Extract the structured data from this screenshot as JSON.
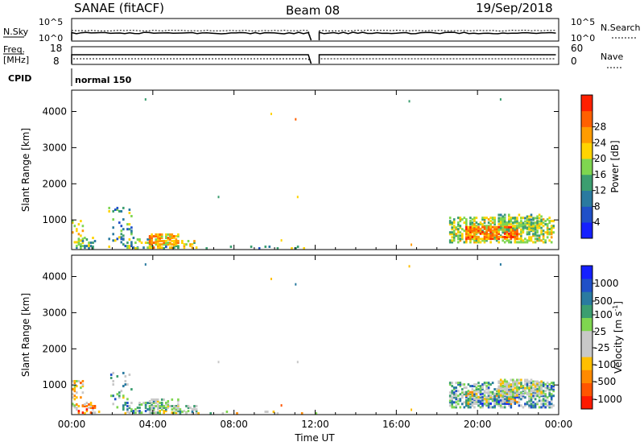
{
  "header": {
    "radar": "SANAE (fitACF)",
    "beam": "Beam 08",
    "date": "19/Sep/2018"
  },
  "status_panels": {
    "nsky_label": "N.Sky",
    "nsky_ticks": [
      "10^5",
      "10^0"
    ],
    "nsearch_label": "N.Search",
    "nsearch_ticks": [
      "10^5",
      "10^0"
    ],
    "freq_label": "Freq.",
    "freq_unit": "[MHz]",
    "freq_ticks": [
      "18",
      "8"
    ],
    "nave_label": "Nave",
    "nave_ticks": [
      "60",
      "0"
    ],
    "cpid_label": "CPID",
    "cpid_value": "normal 150",
    "gap_hours": [
      11.8,
      12.2
    ]
  },
  "colors": {
    "power_scale": [
      "#1520ff",
      "#2050c8",
      "#2a7aa0",
      "#3c9e70",
      "#7fd650",
      "#ffd400",
      "#ff9c00",
      "#ff6000",
      "#ff2000"
    ],
    "velocity_scale": [
      "#ff1a00",
      "#ff5500",
      "#ff8a00",
      "#ffbf00",
      "#c8c8c8",
      "#c8c8c8",
      "#7fd650",
      "#3c9e70",
      "#2a7aa0",
      "#2050c8",
      "#1520ff"
    ]
  },
  "chart_data": [
    {
      "type": "heatmap",
      "panel": "power",
      "ylabel": "Slant Range [km]",
      "xlabel": "",
      "x_ticks": [
        "00:00",
        "04:00",
        "08:00",
        "12:00",
        "16:00",
        "20:00",
        "00:00"
      ],
      "xlim_hours": [
        0,
        24
      ],
      "y_ticks": [
        1000,
        2000,
        3000,
        4000
      ],
      "ylim_km": [
        180,
        4590
      ],
      "colorbar": {
        "label": "Power [dB]",
        "ticks": [
          "4",
          "8",
          "12",
          "16",
          "20",
          "24",
          "28"
        ],
        "range": [
          0,
          32
        ]
      },
      "regions": [
        {
          "t0": 0.0,
          "t1": 0.6,
          "r0": 350,
          "r1": 1100,
          "density": 0.25,
          "v0": 14,
          "v1": 24
        },
        {
          "t0": 0.2,
          "t1": 1.2,
          "r0": 200,
          "r1": 500,
          "density": 0.35,
          "v0": 8,
          "v1": 22
        },
        {
          "t0": 1.8,
          "t1": 3.0,
          "r0": 350,
          "r1": 1300,
          "density": 0.12,
          "v0": 4,
          "v1": 20
        },
        {
          "t0": 2.5,
          "t1": 4.0,
          "r0": 200,
          "r1": 500,
          "density": 0.3,
          "v0": 4,
          "v1": 20
        },
        {
          "t0": 3.8,
          "t1": 5.2,
          "r0": 200,
          "r1": 580,
          "density": 0.6,
          "v0": 16,
          "v1": 28
        },
        {
          "t0": 5.0,
          "t1": 6.1,
          "r0": 200,
          "r1": 420,
          "density": 0.35,
          "v0": 12,
          "v1": 24
        },
        {
          "t0": 0.3,
          "t1": 12.0,
          "r0": 180,
          "r1": 260,
          "density": 0.08,
          "v0": 4,
          "v1": 20
        },
        {
          "t0": 18.6,
          "t1": 23.8,
          "r0": 350,
          "r1": 1050,
          "density": 0.5,
          "v0": 12,
          "v1": 22
        },
        {
          "t0": 19.4,
          "t1": 22.0,
          "r0": 450,
          "r1": 800,
          "density": 0.75,
          "v0": 20,
          "v1": 30
        },
        {
          "t0": 21.0,
          "t1": 23.2,
          "r0": 700,
          "r1": 1150,
          "density": 0.45,
          "v0": 10,
          "v1": 20
        }
      ],
      "points": [
        {
          "t": 3.6,
          "r": 4300,
          "v": 12
        },
        {
          "t": 9.8,
          "r": 3900,
          "v": 20
        },
        {
          "t": 11.0,
          "r": 3750,
          "v": 26
        },
        {
          "t": 16.6,
          "r": 4250,
          "v": 12
        },
        {
          "t": 21.1,
          "r": 4300,
          "v": 12
        },
        {
          "t": 7.2,
          "r": 1600,
          "v": 12
        },
        {
          "t": 11.1,
          "r": 1600,
          "v": 20
        },
        {
          "t": 10.3,
          "r": 400,
          "v": 20
        },
        {
          "t": 16.7,
          "r": 280,
          "v": 24
        }
      ]
    },
    {
      "type": "heatmap",
      "panel": "velocity",
      "ylabel": "Slant Range [km]",
      "xlabel": "Time UT",
      "x_ticks": [
        "00:00",
        "04:00",
        "08:00",
        "12:00",
        "16:00",
        "20:00",
        "00:00"
      ],
      "xlim_hours": [
        0,
        24
      ],
      "y_ticks": [
        1000,
        2000,
        3000,
        4000
      ],
      "ylim_km": [
        180,
        4590
      ],
      "colorbar": {
        "label": "Velocity [m s",
        "label_exp": "-1",
        "label_end": "]",
        "ticks": [
          "1000",
          "500",
          "100",
          "25",
          "-25",
          "-100",
          "-500",
          "-1000"
        ]
      },
      "regions": [
        {
          "t0": 0.0,
          "t1": 0.6,
          "r0": 350,
          "r1": 1100,
          "density": 0.25,
          "v0": 1,
          "v1": 6
        },
        {
          "t0": 0.2,
          "t1": 1.2,
          "r0": 200,
          "r1": 500,
          "density": 0.35,
          "v0": 0,
          "v1": 5
        },
        {
          "t0": 1.8,
          "t1": 3.0,
          "r0": 350,
          "r1": 1300,
          "density": 0.12,
          "v0": 3,
          "v1": 9
        },
        {
          "t0": 2.5,
          "t1": 4.0,
          "r0": 200,
          "r1": 500,
          "density": 0.3,
          "v0": 4,
          "v1": 9
        },
        {
          "t0": 3.8,
          "t1": 5.2,
          "r0": 200,
          "r1": 580,
          "density": 0.6,
          "v0": 3,
          "v1": 8
        },
        {
          "t0": 5.0,
          "t1": 6.1,
          "r0": 200,
          "r1": 420,
          "density": 0.35,
          "v0": 4,
          "v1": 7
        },
        {
          "t0": 0.3,
          "t1": 12.0,
          "r0": 180,
          "r1": 260,
          "density": 0.08,
          "v0": 2,
          "v1": 8
        },
        {
          "t0": 18.6,
          "t1": 23.8,
          "r0": 350,
          "r1": 1050,
          "density": 0.5,
          "v0": 4,
          "v1": 9
        },
        {
          "t0": 19.4,
          "t1": 22.0,
          "r0": 450,
          "r1": 800,
          "density": 0.75,
          "v0": 2,
          "v1": 10
        },
        {
          "t0": 21.0,
          "t1": 23.2,
          "r0": 700,
          "r1": 1150,
          "density": 0.45,
          "v0": 3,
          "v1": 6
        }
      ],
      "points": [
        {
          "t": 3.6,
          "r": 4300,
          "v": 8
        },
        {
          "t": 9.8,
          "r": 3900,
          "v": 3
        },
        {
          "t": 11.0,
          "r": 3750,
          "v": 8
        },
        {
          "t": 16.6,
          "r": 4250,
          "v": 3
        },
        {
          "t": 21.1,
          "r": 4300,
          "v": 8
        },
        {
          "t": 7.2,
          "r": 1600,
          "v": 4
        },
        {
          "t": 11.1,
          "r": 1600,
          "v": 4
        },
        {
          "t": 10.3,
          "r": 400,
          "v": 1
        },
        {
          "t": 16.7,
          "r": 280,
          "v": 3
        }
      ]
    }
  ]
}
